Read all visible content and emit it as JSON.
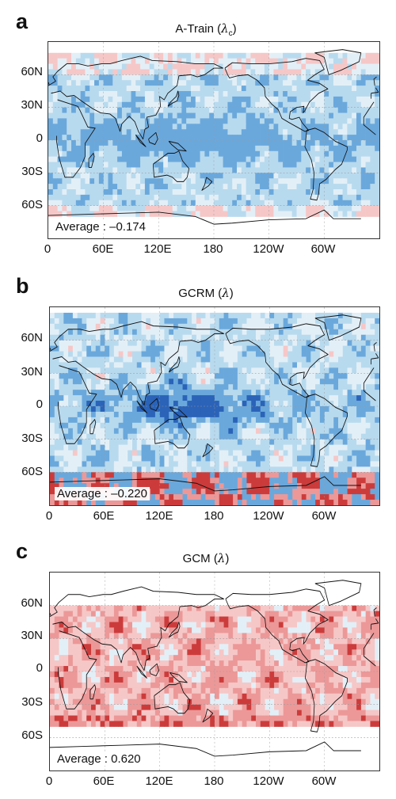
{
  "x_tick_labels": [
    "0",
    "60E",
    "120E",
    "180",
    "120W",
    "60W"
  ],
  "y_tick_labels": [
    "60N",
    "30N",
    "0",
    "30S",
    "60S"
  ],
  "colors": {
    "blue_dark": "#2a63b8",
    "blue_mid": "#6aa8dc",
    "blue_light": "#b8daee",
    "pale": "#e3eff7",
    "red_light": "#f6c7c7",
    "red_mid": "#ec9898",
    "red_dark": "#cc3b3b",
    "coast": "#111111"
  },
  "panels": [
    {
      "letter": "a",
      "title_text": "A-Train (",
      "title_symbol": "λ",
      "title_sub": "c",
      "title_close": ")",
      "average_label": "Average : –0.174",
      "field": "atrain"
    },
    {
      "letter": "b",
      "title_text": "GCRM (",
      "title_symbol": "λ",
      "title_sub": "",
      "title_close": ")",
      "average_label": "Average : –0.220",
      "field": "gcrm"
    },
    {
      "letter": "c",
      "title_text": "GCM (",
      "title_symbol": "λ",
      "title_sub": "",
      "title_close": ")",
      "average_label": "Average : 0.620",
      "field": "gcm"
    }
  ]
}
